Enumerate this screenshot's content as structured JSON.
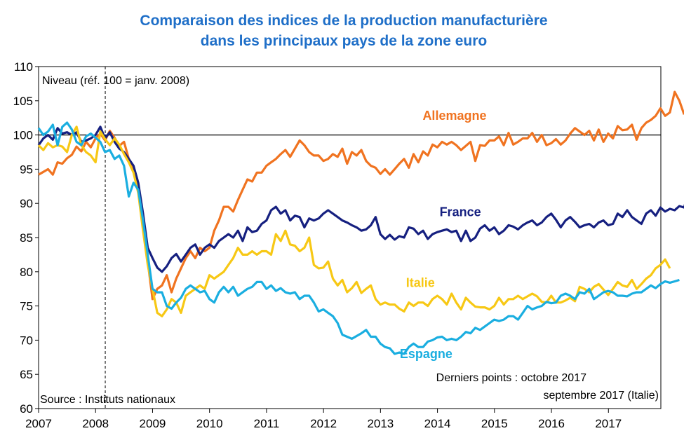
{
  "chart_data": {
    "type": "line",
    "title": [
      "Comparaison des indices de la production manufacturière",
      "dans les principaux pays de la zone euro"
    ],
    "ylabel": "Niveau (réf. 100 = janv. 2008)",
    "source": "Source : Instituts nationaux",
    "last_points": [
      "Derniers points : octobre 2017",
      "septembre 2017 (Italie)"
    ],
    "ylim": [
      60,
      110
    ],
    "xlim": [
      2007.0,
      2017.92
    ],
    "yticks": [
      60,
      65,
      70,
      75,
      80,
      85,
      90,
      95,
      100,
      105,
      110
    ],
    "xticks": [
      "2007",
      "2008",
      "2009",
      "2010",
      "2011",
      "2012",
      "2013",
      "2014",
      "2015",
      "2016",
      "2017"
    ],
    "reference_line": 100,
    "dashed_vline": 2008.17,
    "series": [
      {
        "name": "Allemagne",
        "color": "#f07320",
        "start": 2007.0,
        "step": 0.0833,
        "values": [
          94.2,
          94.6,
          95.0,
          94.2,
          96.0,
          95.8,
          96.6,
          97.1,
          98.3,
          97.6,
          99.0,
          98.2,
          99.5,
          100.2,
          99.2,
          100.6,
          99.6,
          98.4,
          99.0,
          96.5,
          95.0,
          92.0,
          87.5,
          81.5,
          76.0,
          77.5,
          78.0,
          79.5,
          77.0,
          79.0,
          80.5,
          82.0,
          83.0,
          82.0,
          83.5,
          83.0,
          83.5,
          86.0,
          87.5,
          89.5,
          89.5,
          88.8,
          90.5,
          92.0,
          93.5,
          93.2,
          94.5,
          94.5,
          95.5,
          96.0,
          96.5,
          97.2,
          97.8,
          96.8,
          98.0,
          99.2,
          98.5,
          97.5,
          97.0,
          97.0,
          96.2,
          96.5,
          97.2,
          96.8,
          98.0,
          95.8,
          97.5,
          97.0,
          97.8,
          96.2,
          95.5,
          95.2,
          94.3,
          95.0,
          94.2,
          95.0,
          95.8,
          96.5,
          95.2,
          97.2,
          96.0,
          97.6,
          97.0,
          98.6,
          98.2,
          99.0,
          98.6,
          99.0,
          98.5,
          97.8,
          98.4,
          99.0,
          96.2,
          98.5,
          98.4,
          99.2,
          99.2,
          99.8,
          98.5,
          100.3,
          98.6,
          99.0,
          99.5,
          99.5,
          100.3,
          99.0,
          100.0,
          98.5,
          98.8,
          99.4,
          98.6,
          99.2,
          100.2,
          101.0,
          100.5,
          100.0,
          100.6,
          99.2,
          100.8,
          99.0,
          100.2,
          99.5,
          101.3,
          100.7,
          100.8,
          101.5,
          99.3,
          101.0,
          101.8,
          102.2,
          102.8,
          103.9,
          102.8,
          103.3,
          106.3,
          105.0,
          103.0
        ]
      },
      {
        "name": "France",
        "color": "#162080",
        "start": 2007.0,
        "step": 0.0833,
        "values": [
          98.5,
          99.5,
          100.0,
          99.3,
          101.0,
          100.2,
          100.4,
          100.0,
          100.4,
          99.0,
          99.2,
          99.5,
          100.0,
          101.2,
          99.5,
          100.4,
          99.0,
          98.0,
          97.5,
          96.5,
          95.5,
          93.0,
          88.5,
          83.5,
          82.0,
          80.6,
          80.0,
          80.8,
          82.0,
          82.6,
          81.5,
          82.5,
          83.5,
          84.0,
          82.5,
          83.5,
          84.0,
          83.5,
          84.5,
          85.0,
          85.5,
          85.0,
          86.0,
          84.5,
          86.5,
          85.8,
          86.0,
          87.0,
          87.5,
          89.0,
          89.5,
          88.5,
          89.0,
          87.5,
          88.2,
          88.0,
          86.5,
          87.8,
          87.5,
          87.8,
          88.5,
          89.0,
          88.5,
          88.0,
          87.5,
          87.2,
          86.8,
          86.5,
          86.0,
          86.2,
          86.8,
          88.0,
          85.5,
          84.8,
          85.4,
          84.7,
          85.2,
          85.0,
          86.5,
          86.3,
          85.5,
          86.0,
          84.8,
          85.5,
          85.8,
          86.0,
          86.2,
          85.8,
          86.0,
          84.5,
          86.0,
          84.5,
          85.0,
          86.3,
          86.8,
          86.0,
          86.5,
          85.5,
          86.0,
          86.8,
          86.6,
          86.2,
          86.8,
          87.2,
          87.5,
          86.8,
          87.2,
          88.0,
          88.5,
          87.6,
          86.5,
          87.5,
          88.0,
          87.3,
          86.5,
          86.8,
          87.0,
          86.5,
          87.2,
          87.5,
          86.8,
          87.0,
          88.5,
          88.0,
          89.0,
          88.0,
          87.5,
          87.0,
          88.5,
          89.0,
          88.2,
          89.4,
          88.8,
          89.2,
          89.0,
          89.6,
          89.4,
          91.8
        ]
      },
      {
        "name": "Italie",
        "color": "#f7c815",
        "start": 2007.0,
        "step": 0.0833,
        "values": [
          98.5,
          97.8,
          98.8,
          98.2,
          98.5,
          98.3,
          97.5,
          100.0,
          101.2,
          98.5,
          97.5,
          97.0,
          96.0,
          100.5,
          99.4,
          98.5,
          99.5,
          98.6,
          97.2,
          96.0,
          94.5,
          91.5,
          86.0,
          81.0,
          77.5,
          74.0,
          73.5,
          74.5,
          76.0,
          75.5,
          74.0,
          76.5,
          77.0,
          77.5,
          78.0,
          77.5,
          79.5,
          79.0,
          79.5,
          80.0,
          81.0,
          82.0,
          83.5,
          82.5,
          82.5,
          83.0,
          82.5,
          83.0,
          83.0,
          82.5,
          85.5,
          84.5,
          86.0,
          84.0,
          83.8,
          83.0,
          83.5,
          85.0,
          81.0,
          80.5,
          80.6,
          81.5,
          79.0,
          78.0,
          78.8,
          77.0,
          77.6,
          78.5,
          76.9,
          77.5,
          78.0,
          76.0,
          75.2,
          75.5,
          75.2,
          75.2,
          74.6,
          74.2,
          75.5,
          75.0,
          75.5,
          75.5,
          75.0,
          76.0,
          76.5,
          76.0,
          75.2,
          76.8,
          75.5,
          74.5,
          76.2,
          75.5,
          74.9,
          74.8,
          74.8,
          74.5,
          75.0,
          76.2,
          75.2,
          76.0,
          76.0,
          76.5,
          76.0,
          76.4,
          76.8,
          76.4,
          75.6,
          75.5,
          76.5,
          75.5,
          75.5,
          75.8,
          76.2,
          75.7,
          77.8,
          77.5,
          77.0,
          77.8,
          78.2,
          77.4,
          76.6,
          77.5,
          78.5,
          78.0,
          77.8,
          78.8,
          77.5,
          78.2,
          79.0,
          79.5,
          80.5,
          81.0,
          81.8,
          80.5
        ]
      },
      {
        "name": "Espagne",
        "color": "#1aaee0",
        "start": 2007.0,
        "step": 0.0833,
        "values": [
          101.0,
          100.0,
          100.5,
          101.5,
          98.5,
          101.2,
          101.8,
          100.8,
          99.0,
          98.5,
          99.8,
          100.2,
          99.6,
          99.0,
          97.5,
          97.8,
          96.5,
          97.0,
          95.5,
          91.0,
          93.0,
          92.0,
          87.5,
          82.5,
          77.5,
          77.0,
          77.0,
          75.0,
          74.6,
          75.5,
          76.2,
          77.5,
          78.0,
          77.5,
          77.0,
          77.2,
          76.0,
          75.5,
          77.0,
          77.8,
          77.0,
          77.8,
          76.5,
          77.0,
          77.5,
          77.8,
          78.5,
          78.5,
          77.5,
          78.0,
          77.2,
          77.6,
          77.0,
          76.8,
          77.0,
          76.0,
          76.5,
          76.5,
          75.5,
          74.2,
          74.5,
          74.0,
          73.5,
          72.5,
          70.8,
          70.5,
          70.2,
          70.6,
          71.0,
          71.5,
          70.5,
          70.5,
          69.5,
          69.0,
          68.8,
          68.0,
          68.2,
          68.0,
          69.0,
          69.5,
          69.0,
          69.0,
          69.8,
          70.0,
          70.4,
          70.5,
          70.0,
          70.2,
          70.0,
          70.5,
          71.2,
          71.0,
          71.8,
          71.5,
          72.0,
          72.5,
          73.0,
          72.8,
          73.0,
          73.5,
          73.5,
          73.0,
          74.0,
          75.0,
          74.5,
          74.8,
          75.0,
          75.6,
          75.4,
          75.5,
          76.5,
          76.8,
          76.5,
          76.0,
          77.0,
          76.8,
          77.5,
          76.0,
          76.5,
          77.0,
          77.2,
          77.0,
          76.5,
          76.5,
          76.4,
          76.8,
          77.0,
          77.0,
          77.5,
          78.0,
          77.6,
          78.2,
          78.6,
          78.4,
          78.6,
          78.8
        ]
      }
    ]
  }
}
